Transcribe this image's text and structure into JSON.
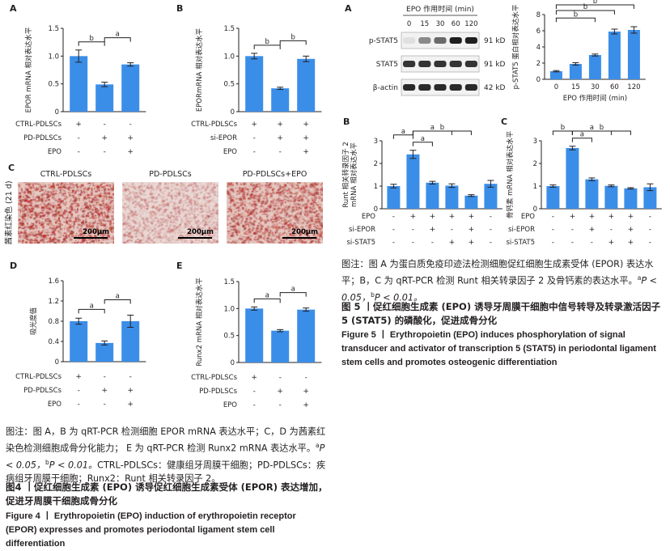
{
  "fig4": {
    "panelA": {
      "letter": "A",
      "ylabel": "EPOR mRNA 相对表达水平",
      "categories": [
        "CTRL-PDLSCs",
        "PD-PDLSCs",
        "PD-PDLSCs+EPO"
      ],
      "values": [
        1.0,
        0.49,
        0.85
      ],
      "errors": [
        0.11,
        0.04,
        0.03
      ],
      "ylim": [
        0,
        1.5
      ],
      "yticks": [
        "0",
        "0.5",
        "1.0",
        "1.5"
      ],
      "brackets": [
        {
          "from": 0,
          "to": 1,
          "label": "b"
        },
        {
          "from": 1,
          "to": 2,
          "label": "a"
        }
      ],
      "rows": [
        {
          "label": "CTRL-PDLSCs",
          "signs": [
            "+",
            "-",
            "-"
          ]
        },
        {
          "label": "PD-PDLSCs",
          "signs": [
            "-",
            "+",
            "+"
          ]
        },
        {
          "label": "EPO",
          "signs": [
            "-",
            "-",
            "+"
          ]
        }
      ]
    },
    "panelB": {
      "letter": "B",
      "ylabel": "EPORmRNA 相对表达水平",
      "values": [
        1.0,
        0.42,
        0.95
      ],
      "errors": [
        0.05,
        0.02,
        0.05
      ],
      "ylim": [
        0,
        1.5
      ],
      "yticks": [
        "0",
        "0.5",
        "1.0",
        "1.5"
      ],
      "brackets": [
        {
          "from": 0,
          "to": 1,
          "label": "b"
        },
        {
          "from": 1,
          "to": 2,
          "label": "b"
        }
      ],
      "rows": [
        {
          "label": "CTRL-PDLSCs",
          "signs": [
            "+",
            "+",
            "+"
          ]
        },
        {
          "label": "si-EPOR",
          "signs": [
            "-",
            "+",
            "+"
          ]
        },
        {
          "label": "EPO",
          "signs": [
            "-",
            "-",
            "+"
          ]
        }
      ]
    },
    "panelC": {
      "letter": "C",
      "ylabel": "茜素红染色 (21 d)",
      "images": [
        "CTRL-PDLSCs",
        "PD-PDLSCs",
        "PD-PDLSCs+EPO"
      ],
      "scalebar": "200μm"
    },
    "panelD": {
      "letter": "D",
      "ylabel": "吸光度值",
      "values": [
        0.8,
        0.37,
        0.8
      ],
      "errors": [
        0.06,
        0.04,
        0.12
      ],
      "ylim": [
        0,
        1.6
      ],
      "yticks": [
        "0",
        "0.4",
        "0.8",
        "1.2",
        "1.6"
      ],
      "brackets": [
        {
          "from": 0,
          "to": 1,
          "label": "a"
        },
        {
          "from": 1,
          "to": 2,
          "label": "a"
        }
      ],
      "rows": [
        {
          "label": "CTRL-PDLSCs",
          "signs": [
            "+",
            "-",
            "-"
          ]
        },
        {
          "label": "PD-PDLSCs",
          "signs": [
            "-",
            "+",
            "+"
          ]
        },
        {
          "label": "EPO",
          "signs": [
            "-",
            "-",
            "+"
          ]
        }
      ]
    },
    "panelE": {
      "letter": "E",
      "ylabel": "Runx2 mRNA 相对表达水平",
      "values": [
        1.0,
        0.59,
        0.98
      ],
      "errors": [
        0.03,
        0.02,
        0.03
      ],
      "ylim": [
        0,
        1.5
      ],
      "yticks": [
        "0",
        "0.5",
        "1.0",
        "1.5"
      ],
      "brackets": [
        {
          "from": 0,
          "to": 1,
          "label": "a"
        },
        {
          "from": 1,
          "to": 2,
          "label": "a"
        }
      ],
      "rows": [
        {
          "label": "CTRL-PDLSCs",
          "signs": [
            "+",
            "-",
            "-"
          ]
        },
        {
          "label": "PD-PDLSCs",
          "signs": [
            "-",
            "+",
            "+"
          ]
        },
        {
          "label": "EPO",
          "signs": [
            "-",
            "-",
            "+"
          ]
        }
      ]
    },
    "caption_note": "图注：图 A，B 为 qRT-PCR 检测细胞 EPOR mRNA 表达水平；C，D 为茜素红染色检测细胞成骨分化能力； E 为 qRT-PCR 检测 Runx2 mRNA 表达水平。",
    "caption_sig_a": "P < 0.05，",
    "caption_sig_b": "P < 0.01。",
    "caption_abbr": "CTRL-PDLSCs：健康组牙周膜干细胞；PD-PDLSCs：疾病组牙周膜干细胞；Runx2：Runt 相关转录因子 2。",
    "title_zh": "图4 丨促红细胞生成素 (EPO) 诱导促红细胞生成素受体 (EPOR) 表达增加，促进牙周膜干细胞成骨分化",
    "title_en": "Figure 4 丨 Erythropoietin (EPO) induction of erythropoietin receptor (EPOR) expresses and promotes periodontal ligament stem cell differentiation"
  },
  "fig5": {
    "panelA": {
      "letter": "A",
      "time_header": "EPO 作用时间 (min)",
      "time_points": [
        "0",
        "15",
        "30",
        "60",
        "120"
      ],
      "blots": [
        {
          "name": "p-STAT5",
          "kd": "91 kD",
          "intensity": [
            0.05,
            0.45,
            0.6,
            0.95,
            0.95
          ]
        },
        {
          "name": "STAT5",
          "kd": "91 kD",
          "intensity": [
            0.85,
            0.85,
            0.85,
            0.85,
            0.85
          ]
        },
        {
          "name": "β-actin",
          "kd": "42 kD",
          "intensity": [
            0.9,
            0.9,
            0.9,
            0.9,
            0.9
          ]
        }
      ]
    },
    "panelA_chart": {
      "ylabel": "p-STAT5 蛋白相对表达水平",
      "xlabel": "EPO 作用时间 (min)",
      "categories": [
        "0",
        "15",
        "30",
        "60",
        "120"
      ],
      "values": [
        1.0,
        1.9,
        3.0,
        5.9,
        6.1
      ],
      "errors": [
        0.08,
        0.15,
        0.12,
        0.3,
        0.4
      ],
      "ylim": [
        0,
        8
      ],
      "yticks": [
        "0",
        "2",
        "4",
        "6",
        "8"
      ],
      "brackets": [
        {
          "from": 0,
          "to": 4,
          "label": "b"
        },
        {
          "from": 0,
          "to": 3,
          "label": "b"
        },
        {
          "from": 0,
          "to": 2,
          "label": "b"
        }
      ]
    },
    "panelB": {
      "letter": "B",
      "ylabel": "Runt 相关转录因子 2 mRNA 相对表达水平",
      "values": [
        1.0,
        2.4,
        1.15,
        1.02,
        0.58,
        1.1
      ],
      "errors": [
        0.08,
        0.18,
        0.06,
        0.08,
        0.04,
        0.15
      ],
      "ylim": [
        0,
        3
      ],
      "yticks": [
        "0",
        "1",
        "2",
        "3"
      ],
      "brackets": [
        {
          "from": 1,
          "to": 4,
          "label": "b"
        },
        {
          "from": 1,
          "to": 3,
          "label": "a"
        },
        {
          "from": 1,
          "to": 2,
          "label": "a"
        },
        {
          "from": 0,
          "to": 1,
          "label": "a"
        }
      ],
      "rows": [
        {
          "label": "EPO",
          "signs": [
            "-",
            "+",
            "+",
            "+",
            "+",
            "-"
          ]
        },
        {
          "label": "si-EPOR",
          "signs": [
            "-",
            "-",
            "+",
            "-",
            "+",
            "-"
          ]
        },
        {
          "label": "si-STAT5",
          "signs": [
            "-",
            "-",
            "-",
            "+",
            "+",
            "-"
          ]
        }
      ]
    },
    "panelC": {
      "letter": "C",
      "ylabel": "骨钙素 mRNA 相对表达水平",
      "values": [
        1.0,
        2.68,
        1.3,
        1.01,
        0.9,
        0.95
      ],
      "errors": [
        0.05,
        0.08,
        0.06,
        0.04,
        0.03,
        0.15
      ],
      "ylim": [
        0,
        3
      ],
      "yticks": [
        "0",
        "1",
        "2",
        "3"
      ],
      "brackets": [
        {
          "from": 1,
          "to": 4,
          "label": "b"
        },
        {
          "from": 1,
          "to": 3,
          "label": "a"
        },
        {
          "from": 1,
          "to": 2,
          "label": "a"
        },
        {
          "from": 0,
          "to": 1,
          "label": "b"
        }
      ],
      "rows": [
        {
          "label": "EPO",
          "signs": [
            "-",
            "+",
            "+",
            "+",
            "+",
            "-"
          ]
        },
        {
          "label": "si-EPOR",
          "signs": [
            "-",
            "-",
            "+",
            "-",
            "+",
            "-"
          ]
        },
        {
          "label": "si-STAT5",
          "signs": [
            "-",
            "-",
            "-",
            "+",
            "+",
            "-"
          ]
        }
      ]
    },
    "caption_note": "图注：图 A 为蛋白质免疫印迹法检测细胞促红细胞生成素受体 (EPOR) 表达水平；B，C 为 qRT-PCR 检测 Runt 相关转录因子 2 及骨钙素的表达水平。",
    "caption_sig_a": "P < 0.05，",
    "caption_sig_b": "P < 0.01。",
    "title_zh": "图 5 丨促红细胞生成素 (EPO) 诱导牙周膜干细胞中信号转导及转录激活因子 5 (STAT5) 的磷酸化，促进成骨分化",
    "title_en": "Figure 5 丨 Erythropoietin (EPO) induces phosphorylation of signal transducer and activator of transcription 5 (STAT5) in periodontal ligament stem cells and promotes osteogenic differentiation"
  },
  "colors": {
    "bar": "#3b8ee8",
    "stain_bg": "#e9d4cf",
    "stain_dot": "#b0362e"
  }
}
